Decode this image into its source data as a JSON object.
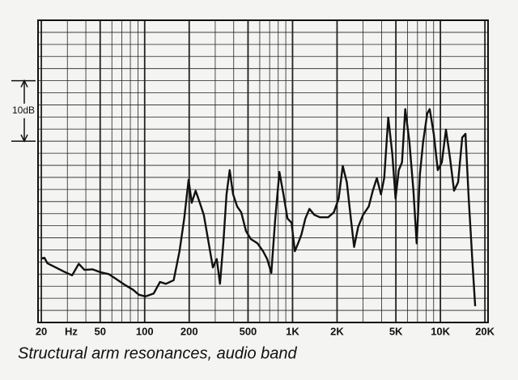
{
  "chart_data": {
    "type": "line",
    "title": "Structural arm resonances, audio band",
    "x_unit": "Hz",
    "scale_bar": {
      "label": "10dB",
      "from": 30,
      "to": 40
    },
    "log_x": true,
    "color": "#111111",
    "grid": true,
    "xlim": [
      19,
      21000
    ],
    "ylim": [
      0,
      50
    ],
    "xticks": [
      20,
      50,
      100,
      200,
      500,
      {
        "value": 1000,
        "label": "1K"
      },
      {
        "value": 2000,
        "label": "2K"
      },
      {
        "value": 5000,
        "label": "5K"
      },
      {
        "value": 10000,
        "label": "10K"
      },
      {
        "value": 20000,
        "label": "20K"
      }
    ],
    "xgrid": [
      20,
      30,
      40,
      50,
      60,
      70,
      80,
      90,
      100,
      200,
      300,
      400,
      500,
      600,
      700,
      800,
      900,
      1000,
      2000,
      3000,
      4000,
      5000,
      6000,
      7000,
      8000,
      9000,
      10000,
      20000
    ],
    "ygrid": [
      0,
      2,
      4,
      6,
      8,
      10,
      12,
      14,
      16,
      18,
      20,
      22,
      24,
      26,
      28,
      30,
      32,
      34,
      36,
      38,
      40,
      42,
      44,
      46,
      48,
      50
    ],
    "x": [
      20,
      21,
      22,
      25,
      28.5,
      32.3,
      35.8,
      39.1,
      44.4,
      50.4,
      57.1,
      64.9,
      73.6,
      83.5,
      91.3,
      101,
      115,
      127,
      139,
      157,
      172,
      185,
      198,
      208,
      221,
      236,
      251,
      271,
      289,
      307,
      323,
      340,
      358,
      376,
      396,
      422,
      450,
      485,
      523,
      579,
      632,
      674,
      718,
      764,
      815,
      868,
      924,
      985,
      1036,
      1090,
      1146,
      1221,
      1301,
      1404,
      1533,
      1740,
      1901,
      2051,
      2185,
      2328,
      2480,
      2608,
      2779,
      2998,
      3276,
      3490,
      3718,
      3961,
      4166,
      4439,
      4727,
      4973,
      5231,
      5503,
      5786,
      6166,
      6569,
      6910,
      7269,
      7645,
      8145,
      8461,
      9013,
      9602,
      10230,
      10900,
      11610,
      12370,
      13170,
      14040,
      14770,
      15530,
      16550,
      17190
    ],
    "values": [
      10.6,
      10.7,
      9.8,
      9.1,
      8.4,
      7.8,
      9.7,
      8.7,
      8.8,
      8.3,
      8.0,
      7.1,
      6.2,
      5.4,
      4.6,
      4.3,
      4.8,
      6.7,
      6.4,
      7.0,
      11.8,
      17.2,
      23.6,
      19.8,
      21.8,
      19.8,
      17.8,
      13.1,
      9.1,
      10.5,
      6.4,
      13.1,
      21.2,
      25.2,
      21.2,
      19.2,
      18.2,
      15.1,
      13.8,
      13.1,
      11.8,
      10.5,
      8.2,
      17.2,
      24.9,
      21.2,
      17.2,
      16.5,
      11.8,
      13.1,
      14.5,
      17.2,
      18.8,
      17.8,
      17.4,
      17.4,
      18.2,
      20.5,
      25.9,
      23.2,
      17.2,
      12.5,
      15.8,
      17.8,
      19.2,
      21.8,
      23.9,
      21.2,
      23.9,
      33.9,
      27.9,
      20.5,
      25.2,
      26.5,
      35.3,
      29.9,
      21.8,
      13.1,
      24.5,
      29.9,
      34.6,
      35.3,
      31.2,
      25.2,
      26.5,
      31.9,
      27.2,
      21.8,
      23.2,
      30.6,
      31.2,
      20.5,
      9.1,
      2.7
    ]
  }
}
